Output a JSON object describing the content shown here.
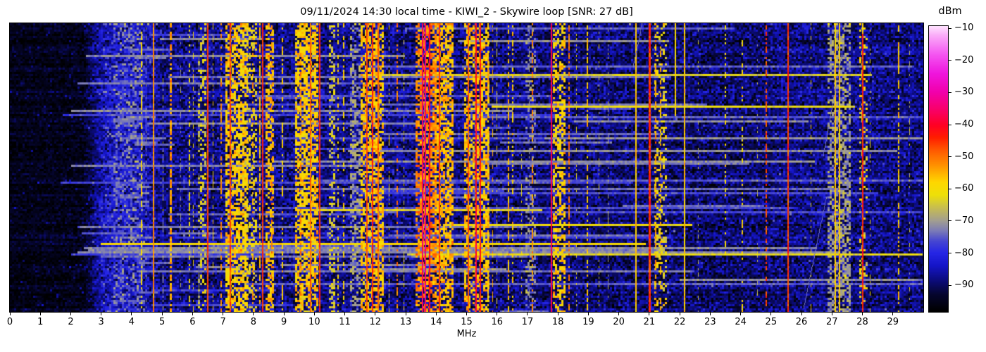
{
  "figure": {
    "title": "09/11/2024 14:30 local time - KIWI_2 - Skywire loop [SNR: 27 dB]"
  },
  "axes": {
    "xlabel": "MHz",
    "x_range": [
      0,
      30
    ],
    "x_tick_labels": [
      "0",
      "1",
      "2",
      "3",
      "4",
      "5",
      "6",
      "7",
      "8",
      "9",
      "10",
      "11",
      "12",
      "13",
      "14",
      "15",
      "16",
      "17",
      "18",
      "19",
      "20",
      "21",
      "22",
      "23",
      "24",
      "25",
      "26",
      "27",
      "28",
      "29"
    ]
  },
  "colorbar": {
    "label": "dBm",
    "tick_values": [
      -10,
      -20,
      -30,
      -40,
      -50,
      -60,
      -70,
      -80,
      -90
    ],
    "tick_labels": [
      "−10",
      "−20",
      "−30",
      "−40",
      "−50",
      "−60",
      "−70",
      "−80",
      "−90"
    ],
    "vmin": -98.3,
    "vmax": -9.3
  },
  "chart_data": {
    "type": "heatmap",
    "title": "09/11/2024 14:30 local time - KIWI_2 - Skywire loop [SNR: 27 dB]",
    "xlabel": "MHz",
    "x_range": [
      0,
      30
    ],
    "y_axis": "time (waterfall sweeps, unlabeled)",
    "value_unit": "dBm",
    "value_range": [
      -98.3,
      -9.3
    ],
    "colormap_stops": [
      [
        -98.3,
        "#000000"
      ],
      [
        -93,
        "#06062e"
      ],
      [
        -88,
        "#0d0d85"
      ],
      [
        -84,
        "#1616c8"
      ],
      [
        -80,
        "#2626e6"
      ],
      [
        -76,
        "#4b4bd0"
      ],
      [
        -73,
        "#7d7db6"
      ],
      [
        -70,
        "#a29e92"
      ],
      [
        -66,
        "#c6bd52"
      ],
      [
        -62,
        "#eee00a"
      ],
      [
        -58,
        "#ffd800"
      ],
      [
        -53,
        "#ff9600"
      ],
      [
        -48,
        "#ff5a00"
      ],
      [
        -44,
        "#ff1e00"
      ],
      [
        -40,
        "#ff0026"
      ],
      [
        -36,
        "#fa0060"
      ],
      [
        -30,
        "#f200aa"
      ],
      [
        -24,
        "#ef16de"
      ],
      [
        -18,
        "#f557f2"
      ],
      [
        -12,
        "#fbaef9"
      ],
      [
        -9.3,
        "#ffe2ff"
      ]
    ],
    "background": {
      "mean": [
        [
          0,
          -95.5
        ],
        [
          2.4,
          -95.3
        ],
        [
          3.1,
          -83.5
        ],
        [
          4.35,
          -83.5
        ],
        [
          5.0,
          -88.2
        ],
        [
          13,
          -88.2
        ],
        [
          22.6,
          -89.8
        ],
        [
          24.5,
          -89.8
        ],
        [
          25.3,
          -88.5
        ],
        [
          30,
          -88.3
        ]
      ],
      "sigma": [
        [
          0,
          1.8
        ],
        [
          2.4,
          2.2
        ],
        [
          3.1,
          4.5
        ],
        [
          4.35,
          4.5
        ],
        [
          5,
          4.0
        ],
        [
          30,
          4.0
        ]
      ]
    },
    "speckle_bands": [
      {
        "f0": 3.4,
        "f1": 4.35,
        "db": -73,
        "density": 0.3
      },
      {
        "f0": 6.15,
        "f1": 6.45,
        "db": -64,
        "density": 0.3
      },
      {
        "f0": 7.05,
        "f1": 7.75,
        "db": -58,
        "density": 0.6
      },
      {
        "f0": 7.6,
        "f1": 8.15,
        "db": -62,
        "density": 0.35
      },
      {
        "f0": 8.4,
        "f1": 8.68,
        "db": -57,
        "density": 0.5
      },
      {
        "f0": 9.35,
        "f1": 10.1,
        "db": -58,
        "density": 0.6
      },
      {
        "f0": 10.45,
        "f1": 10.7,
        "db": -64,
        "density": 0.4
      },
      {
        "f0": 11.2,
        "f1": 11.5,
        "db": -70,
        "density": 0.4
      },
      {
        "f0": 11.55,
        "f1": 12.3,
        "db": -57,
        "density": 0.55
      },
      {
        "f0": 13.35,
        "f1": 14.0,
        "db": -52,
        "density": 0.55
      },
      {
        "f0": 13.95,
        "f1": 14.6,
        "db": -56,
        "density": 0.55
      },
      {
        "f0": 14.9,
        "f1": 15.75,
        "db": -57,
        "density": 0.5
      },
      {
        "f0": 16.9,
        "f1": 17.3,
        "db": -72,
        "density": 0.35
      },
      {
        "f0": 17.85,
        "f1": 18.25,
        "db": -58,
        "density": 0.5
      },
      {
        "f0": 21.15,
        "f1": 21.6,
        "db": -62,
        "density": 0.3
      },
      {
        "f0": 26.85,
        "f1": 27.6,
        "db": -70,
        "density": 0.5
      },
      {
        "f0": 27.9,
        "f1": 28.15,
        "db": -62,
        "density": 0.25
      }
    ],
    "lines": [
      {
        "f": 4.33,
        "w": 0.05,
        "db": -60,
        "style": "dash",
        "duty": 0.55
      },
      {
        "f": 4.48,
        "w": 0.03,
        "db": -72,
        "style": "dash",
        "duty": 0.3
      },
      {
        "f": 4.72,
        "w": 0.04,
        "db": -52,
        "style": "solid"
      },
      {
        "f": 5.02,
        "w": 0.03,
        "db": -68,
        "style": "dash",
        "duty": 0.35
      },
      {
        "f": 5.28,
        "w": 0.06,
        "db": -54,
        "style": "dash",
        "duty": 0.7
      },
      {
        "f": 5.62,
        "w": 0.03,
        "db": -70,
        "style": "dash",
        "duty": 0.3
      },
      {
        "f": 5.9,
        "w": 0.04,
        "db": -62,
        "style": "dash",
        "duty": 0.45
      },
      {
        "f": 6.02,
        "w": 0.03,
        "db": -60,
        "style": "dash",
        "duty": 0.4
      },
      {
        "f": 6.2,
        "w": 0.03,
        "db": -70,
        "style": "dash",
        "duty": 0.35
      },
      {
        "f": 6.51,
        "w": 0.045,
        "db": -46,
        "style": "solid"
      },
      {
        "f": 6.68,
        "w": 0.03,
        "db": -58,
        "style": "dash",
        "duty": 0.45
      },
      {
        "f": 6.93,
        "w": 0.04,
        "db": -52,
        "style": "dash",
        "duty": 0.5
      },
      {
        "f": 7.25,
        "w": 0.045,
        "db": -46,
        "style": "solid"
      },
      {
        "f": 7.8,
        "w": 0.035,
        "db": -58,
        "style": "dash",
        "duty": 0.45
      },
      {
        "f": 7.97,
        "w": 0.035,
        "db": -54,
        "style": "dash",
        "duty": 0.4
      },
      {
        "f": 8.2,
        "w": 0.04,
        "db": -56,
        "style": "dash",
        "duty": 0.7
      },
      {
        "f": 8.3,
        "w": 0.055,
        "db": -45,
        "style": "solid"
      },
      {
        "f": 8.6,
        "w": 0.04,
        "db": -52,
        "style": "dash",
        "duty": 0.5
      },
      {
        "f": 8.95,
        "w": 0.035,
        "db": -58,
        "style": "dash",
        "duty": 0.45
      },
      {
        "f": 9.55,
        "w": 0.04,
        "db": -52,
        "style": "dash",
        "duty": 0.5
      },
      {
        "f": 9.88,
        "w": 0.045,
        "db": -49,
        "style": "solid"
      },
      {
        "f": 10.17,
        "w": 0.05,
        "db": -45,
        "style": "solid"
      },
      {
        "f": 10.78,
        "w": 0.035,
        "db": -60,
        "style": "dash",
        "duty": 0.4
      },
      {
        "f": 10.97,
        "w": 0.035,
        "db": -58,
        "style": "dash",
        "duty": 0.45
      },
      {
        "f": 11.72,
        "w": 0.045,
        "db": -47,
        "style": "solid"
      },
      {
        "f": 11.92,
        "w": 0.05,
        "db": -44,
        "style": "solid"
      },
      {
        "f": 12.1,
        "w": 0.04,
        "db": -49,
        "style": "solid"
      },
      {
        "f": 12.45,
        "w": 0.03,
        "db": -60,
        "style": "dash",
        "duty": 0.4
      },
      {
        "f": 12.72,
        "w": 0.035,
        "db": -50,
        "style": "dash",
        "duty": 0.5
      },
      {
        "f": 12.95,
        "w": 0.03,
        "db": -62,
        "style": "dash",
        "duty": 0.35
      },
      {
        "f": 13.55,
        "w": 0.05,
        "db": -36,
        "style": "solid"
      },
      {
        "f": 13.65,
        "w": 0.055,
        "db": -34,
        "style": "solid"
      },
      {
        "f": 13.78,
        "w": 0.04,
        "db": -40,
        "style": "solid"
      },
      {
        "f": 14.1,
        "w": 0.045,
        "db": -46,
        "style": "solid"
      },
      {
        "f": 14.35,
        "w": 0.03,
        "db": -55,
        "style": "dash",
        "duty": 0.5
      },
      {
        "f": 15.05,
        "w": 0.04,
        "db": -48,
        "style": "solid"
      },
      {
        "f": 15.32,
        "w": 0.045,
        "db": -40,
        "style": "solid"
      },
      {
        "f": 15.45,
        "w": 0.035,
        "db": -43,
        "style": "solid"
      },
      {
        "f": 15.7,
        "w": 0.04,
        "db": -56,
        "style": "dash",
        "duty": 0.6
      },
      {
        "f": 15.85,
        "w": 0.03,
        "db": -54,
        "style": "dash",
        "duty": 0.4
      },
      {
        "f": 16.0,
        "w": 0.03,
        "db": -62,
        "style": "dash",
        "duty": 0.35
      },
      {
        "f": 16.38,
        "w": 0.045,
        "db": -56,
        "style": "dash",
        "duty": 0.5
      },
      {
        "f": 16.52,
        "w": 0.035,
        "db": -58,
        "style": "dash",
        "duty": 0.45
      },
      {
        "f": 16.8,
        "w": 0.03,
        "db": -60,
        "style": "dash",
        "duty": 0.4,
        "rows": [
          0.45,
          1
        ]
      },
      {
        "f": 17.05,
        "w": 0.03,
        "db": -70,
        "style": "dash",
        "duty": 0.35
      },
      {
        "f": 17.17,
        "w": 0.035,
        "db": -52,
        "style": "dash",
        "duty": 0.45
      },
      {
        "f": 17.78,
        "w": 0.05,
        "db": -37,
        "style": "solid"
      },
      {
        "f": 18.37,
        "w": 0.04,
        "db": -50,
        "style": "dash",
        "duty": 0.5
      },
      {
        "f": 18.6,
        "w": 0.03,
        "db": -62,
        "style": "dash",
        "duty": 0.3
      },
      {
        "f": 18.97,
        "w": 0.04,
        "db": -57,
        "style": "dash",
        "duty": 0.5
      },
      {
        "f": 19.35,
        "w": 0.03,
        "db": -64,
        "style": "dash",
        "duty": 0.3
      },
      {
        "f": 19.65,
        "w": 0.03,
        "db": -68,
        "style": "dash",
        "duty": 0.3
      },
      {
        "f": 20.56,
        "w": 0.045,
        "db": -57,
        "style": "solid"
      },
      {
        "f": 21.02,
        "w": 0.06,
        "db": -45,
        "style": "solid"
      },
      {
        "f": 21.22,
        "w": 0.035,
        "db": -53,
        "style": "dash",
        "duty": 0.5
      },
      {
        "f": 21.38,
        "w": 0.035,
        "db": -55,
        "style": "dash",
        "duty": 0.45
      },
      {
        "f": 21.85,
        "w": 0.035,
        "db": -59,
        "style": "solid",
        "rows": [
          0,
          0.32
        ]
      },
      {
        "f": 22.15,
        "w": 0.045,
        "db": -57,
        "style": "solid"
      },
      {
        "f": 22.6,
        "w": 0.03,
        "db": -66,
        "style": "dash",
        "duty": 0.25
      },
      {
        "f": 23.5,
        "w": 0.035,
        "db": -60,
        "style": "dash",
        "duty": 0.3
      },
      {
        "f": 24.05,
        "w": 0.035,
        "db": -60,
        "style": "dash",
        "duty": 0.3
      },
      {
        "f": 24.55,
        "w": 0.03,
        "db": -68,
        "style": "dash",
        "duty": 0.25
      },
      {
        "f": 24.85,
        "w": 0.04,
        "db": -47,
        "style": "dash",
        "duty": 0.6
      },
      {
        "f": 25.55,
        "w": 0.05,
        "db": -46,
        "style": "solid"
      },
      {
        "f": 26.3,
        "w": 0.03,
        "db": -60,
        "style": "dash",
        "duty": 0.3
      },
      {
        "f": 27.12,
        "w": 0.035,
        "db": -57,
        "style": "solid"
      },
      {
        "f": 27.24,
        "w": 0.035,
        "db": -57,
        "style": "solid"
      },
      {
        "f": 27.4,
        "w": 0.03,
        "db": -62,
        "style": "dash",
        "duty": 0.4
      },
      {
        "f": 28.02,
        "w": 0.05,
        "db": -44,
        "style": "solid"
      },
      {
        "f": 28.02,
        "w": 0.05,
        "db": -56,
        "style": "solid",
        "rows": [
          0,
          0.04
        ]
      },
      {
        "f": 28.25,
        "w": 0.03,
        "db": -62,
        "style": "dash",
        "duty": 0.3
      },
      {
        "f": 29.2,
        "w": 0.04,
        "db": -57,
        "style": "dash",
        "duty": 0.55
      },
      {
        "f": 29.55,
        "w": 0.03,
        "db": -66,
        "style": "dash",
        "duty": 0.25
      }
    ],
    "streaks": {
      "named": [
        {
          "row": 0.762,
          "f0": 3.0,
          "f1": 20.9,
          "db": -59.5
        },
        {
          "row": 0.775,
          "f0": 2.4,
          "f1": 26.5,
          "db": -72
        },
        {
          "row": 0.785,
          "f0": 2.6,
          "f1": 21.5,
          "db": -73
        },
        {
          "row": 0.795,
          "f0": 2.2,
          "f1": 27.2,
          "db": -72
        },
        {
          "row": 0.805,
          "f0": 3.0,
          "f1": 17.0,
          "db": -74
        },
        {
          "row": 0.3,
          "f0": 2.0,
          "f1": 16.5,
          "db": -72
        },
        {
          "row": 0.21,
          "f0": 2.2,
          "f1": 10.5,
          "db": -73
        },
        {
          "row": 0.115,
          "f0": 2.5,
          "f1": 13.0,
          "db": -72
        },
        {
          "row": 0.495,
          "f0": 2.0,
          "f1": 12.0,
          "db": -73
        },
        {
          "row": 0.57,
          "f0": 5.5,
          "f1": 27.5,
          "db": -74
        }
      ],
      "generated": {
        "count": 62,
        "f_min": 1.2,
        "f_span": 21,
        "len_base": 0.8,
        "len_var": 22,
        "db_base": -78,
        "db_var": 7,
        "yellow_prob": 0.09
      },
      "short_region": {
        "count": 24,
        "f0": 3.2,
        "f1": 4.6,
        "db": -74
      }
    },
    "chirps": [
      {
        "f0": 27.35,
        "r0": 0.08,
        "f1": 26.7,
        "r1": 0.46,
        "db": -73
      },
      {
        "f0": 26.8,
        "r0": 0.6,
        "f1": 26.05,
        "r1": 0.99,
        "db": -74
      },
      {
        "f0": 20.75,
        "r0": 0.0,
        "f1": 20.45,
        "r1": 0.15,
        "db": -73
      }
    ]
  }
}
